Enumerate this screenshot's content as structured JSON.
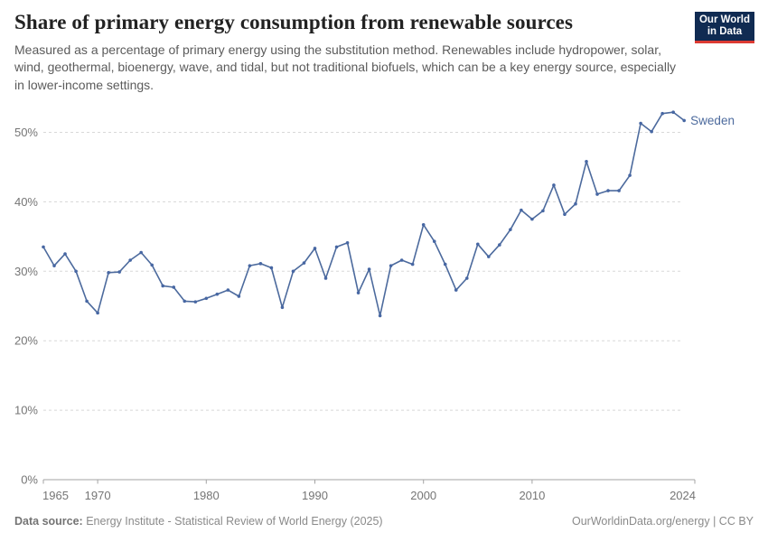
{
  "header": {
    "title": "Share of primary energy consumption from renewable sources",
    "subtitle": "Measured as a percentage of primary energy using the substitution method. Renewables include hydropower, solar, wind, geothermal, bioenergy, wave, and tidal, but not traditional biofuels, which can be a key energy source, especially in lower-income settings.",
    "logo": {
      "line1": "Our World",
      "line2": "in Data"
    }
  },
  "chart_data": {
    "type": "line",
    "title": "Share of primary energy consumption from renewable sources",
    "xlabel": "",
    "ylabel": "",
    "x": [
      1965,
      1966,
      1967,
      1968,
      1969,
      1970,
      1971,
      1972,
      1973,
      1974,
      1975,
      1976,
      1977,
      1978,
      1979,
      1980,
      1981,
      1982,
      1983,
      1984,
      1985,
      1986,
      1987,
      1988,
      1989,
      1990,
      1991,
      1992,
      1993,
      1994,
      1995,
      1996,
      1997,
      1998,
      1999,
      2000,
      2001,
      2002,
      2003,
      2004,
      2005,
      2006,
      2007,
      2008,
      2009,
      2010,
      2011,
      2012,
      2013,
      2014,
      2015,
      2016,
      2017,
      2018,
      2019,
      2020,
      2021,
      2022,
      2023,
      2024
    ],
    "series": [
      {
        "name": "Sweden",
        "color": "#4c6a9d",
        "values": [
          33.5,
          30.8,
          32.5,
          30.0,
          25.7,
          24.0,
          29.8,
          29.9,
          31.6,
          32.7,
          30.9,
          27.9,
          27.7,
          25.7,
          25.6,
          26.1,
          26.7,
          27.3,
          26.4,
          30.8,
          31.1,
          30.5,
          24.8,
          30.0,
          31.2,
          33.3,
          29.0,
          33.5,
          34.1,
          26.9,
          30.3,
          23.6,
          30.8,
          31.6,
          31.0,
          36.7,
          34.3,
          31.0,
          27.3,
          29.0,
          33.9,
          32.1,
          33.8,
          36.0,
          38.8,
          37.5,
          38.7,
          42.4,
          38.2,
          39.7,
          45.8,
          41.1,
          41.6,
          41.6,
          43.8,
          51.3,
          50.1,
          52.7,
          52.9,
          51.7
        ]
      }
    ],
    "xticks": [
      1965,
      1970,
      1980,
      1990,
      2000,
      2010,
      2024
    ],
    "yticks": [
      0,
      10,
      20,
      30,
      40,
      50
    ],
    "ytick_suffix": "%",
    "xlim": [
      1965,
      2025
    ],
    "ylim": [
      0,
      53.5
    ],
    "grid": "horizontal-dashed",
    "legend": "line-end-label"
  },
  "footer": {
    "source_label": "Data source:",
    "source_text": " Energy Institute - Statistical Review of World Energy (2025)",
    "credit": "OurWorldinData.org/energy | CC BY"
  },
  "colors": {
    "line": "#4c6a9d",
    "marker": "#4767a3",
    "grid": "#d8d8d8",
    "axis": "#a3a3a3",
    "tick_label": "#757575",
    "logo_bg": "#102b52",
    "logo_accent": "#dc3b33"
  }
}
